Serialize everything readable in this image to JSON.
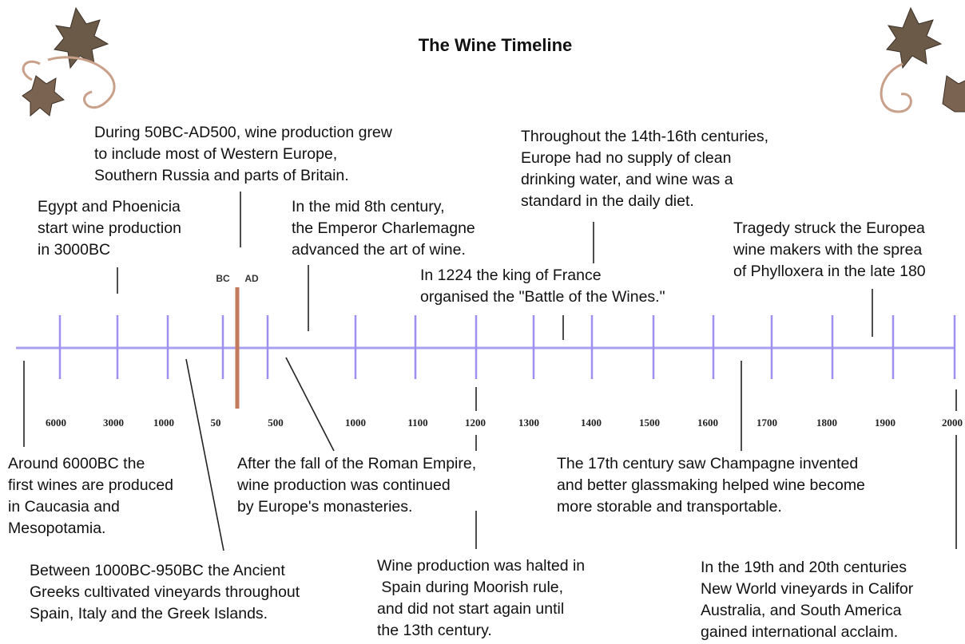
{
  "title": "The Wine Timeline",
  "eras": [
    "BC",
    "AD"
  ],
  "tick_labels": [
    "6000",
    "3000",
    "1000",
    "50",
    "500",
    "1000",
    "1100",
    "1200",
    "1300",
    "1400",
    "1500",
    "1600",
    "1700",
    "1800",
    "1900",
    "2000"
  ],
  "events": [
    {
      "lines": [
        "During 50BC-AD500, wine production grew",
        "to include most of Western Europe,",
        "Southern Russia and parts of Britain."
      ]
    },
    {
      "lines": [
        "Egypt and Phoenicia",
        "start wine production",
        "in 3000BC"
      ]
    },
    {
      "lines": [
        "In the mid 8th century,",
        "the Emperor Charlemagne",
        "advanced the art of wine."
      ]
    },
    {
      "lines": [
        "Throughout the 14th-16th centuries,",
        "Europe had no supply of clean",
        "drinking water, and wine was a",
        "standard in the daily diet."
      ]
    },
    {
      "lines": [
        "Tragedy struck the Europea",
        "wine makers with the sprea",
        "of Phylloxera in the late 180"
      ]
    },
    {
      "lines": [
        "In 1224 the king of France",
        "organised the \"Battle of the Wines.\""
      ]
    },
    {
      "lines": [
        "Around 6000BC the",
        "first wines are produced",
        "in Caucasia and",
        "Mesopotamia."
      ]
    },
    {
      "lines": [
        "Between 1000BC-950BC the Ancient",
        "Greeks cultivated vineyards throughout",
        "Spain, Italy and the Greek Islands."
      ]
    },
    {
      "lines": [
        "After the fall of the Roman Empire,",
        "wine production was continued",
        "by Europe's monasteries."
      ]
    },
    {
      "lines": [
        "The 17th century saw Champagne invented",
        "and better glassmaking helped wine become",
        "more storable and transportable."
      ]
    },
    {
      "lines": [
        "Wine production was halted in",
        " Spain during Moorish rule,",
        "and did not start again until",
        "the 13th century."
      ]
    },
    {
      "lines": [
        "In the 19th and 20th centuries",
        "New World vineyards in Califor",
        "Australia, and South America",
        "gained international acclaim."
      ]
    }
  ]
}
